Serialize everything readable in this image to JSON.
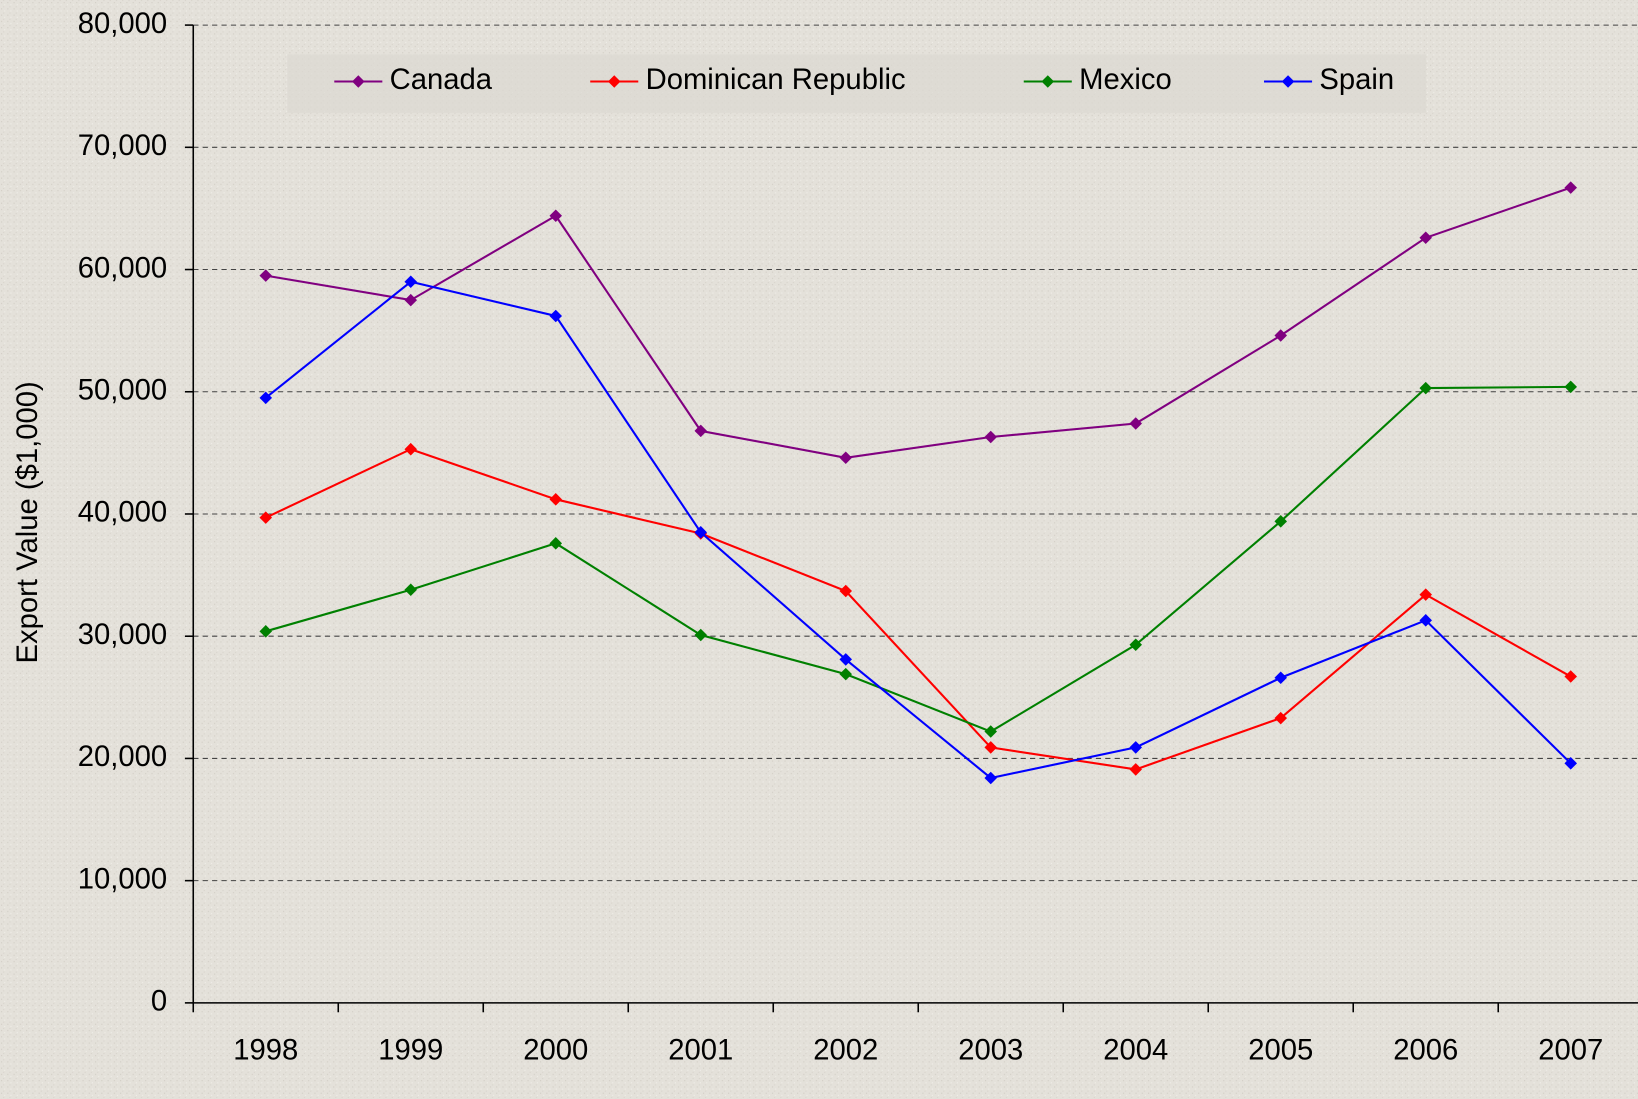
{
  "chart_data": {
    "type": "line",
    "y_label": "Export Value ($1,000)",
    "categories": [
      "1998",
      "1999",
      "2000",
      "2001",
      "2002",
      "2003",
      "2004",
      "2005",
      "2006",
      "2007"
    ],
    "series": [
      {
        "name": "Canada",
        "color": "#800080",
        "values": [
          59500,
          57500,
          64400,
          46800,
          44600,
          46300,
          47400,
          54600,
          62600,
          66700
        ]
      },
      {
        "name": "Dominican Republic",
        "color": "#ff0000",
        "values": [
          39700,
          45300,
          41200,
          38400,
          33700,
          20900,
          19100,
          23300,
          33400,
          26700
        ]
      },
      {
        "name": "Mexico",
        "color": "#008000",
        "values": [
          30400,
          33800,
          37600,
          30100,
          26900,
          22200,
          29300,
          39400,
          50300,
          50400
        ]
      },
      {
        "name": "Spain",
        "color": "#0000ff",
        "values": [
          49500,
          59000,
          56200,
          38500,
          28100,
          18400,
          20900,
          26600,
          31300,
          19600
        ]
      }
    ],
    "ylim": [
      0,
      80000
    ],
    "yticks": [
      0,
      {
        "value": 10000,
        "label": "10,000"
      },
      {
        "value": 20000,
        "label": "20,000"
      },
      {
        "value": 30000,
        "label": "30,000"
      },
      {
        "value": 40000,
        "label": "40,000"
      },
      {
        "value": 50000,
        "label": "50,000"
      },
      {
        "value": 60000,
        "label": "60,000"
      },
      {
        "value": 70000,
        "label": "70,000"
      },
      {
        "value": 80000,
        "label": "80,000"
      }
    ],
    "grid": true,
    "legend": "top"
  }
}
